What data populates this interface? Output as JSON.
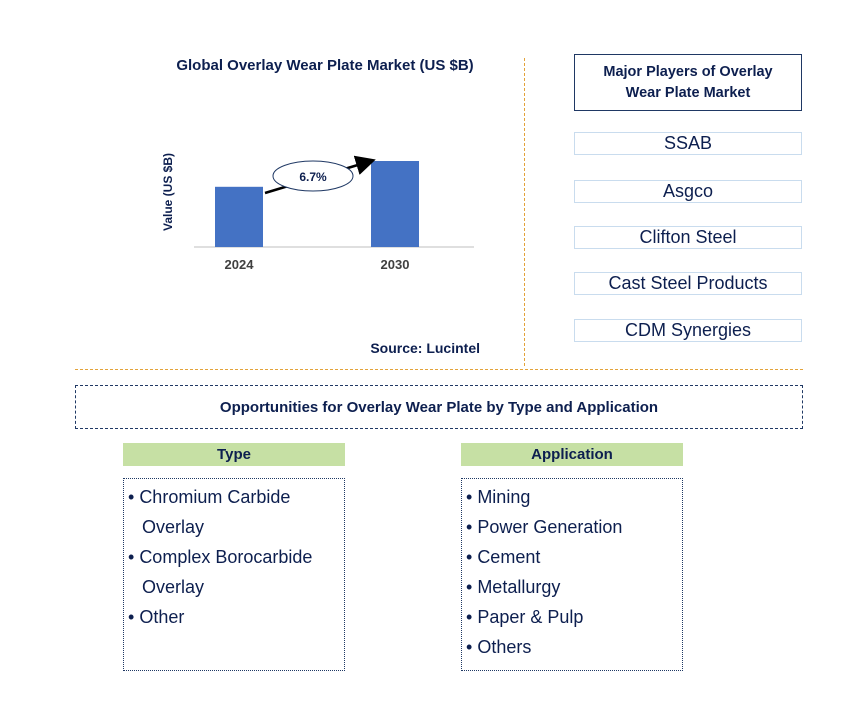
{
  "chart_data": {
    "type": "bar",
    "title": "Global Overlay Wear Plate Market (US $B)",
    "ylabel": "Value (US $B)",
    "categories": [
      "2024",
      "2030"
    ],
    "values": [
      0.7,
      1.0
    ],
    "annotation": "6.7%",
    "bar_color": "#4472c4"
  },
  "source": "Source: Lucintel",
  "players": {
    "header": "Major Players of Overlay Wear Plate Market",
    "items": [
      "SSAB",
      "Asgco",
      "Clifton Steel",
      "Cast Steel Products",
      "CDM Synergies"
    ]
  },
  "opportunities": {
    "header": "Opportunities for Overlay Wear Plate by Type and Application",
    "type": {
      "title": "Type",
      "items": [
        "Chromium Carbide Overlay",
        "Complex Borocarbide Overlay",
        "Other"
      ]
    },
    "application": {
      "title": "Application",
      "items": [
        "Mining",
        "Power Generation",
        "Cement",
        "Metallurgy",
        "Paper & Pulp",
        "Others"
      ]
    }
  }
}
